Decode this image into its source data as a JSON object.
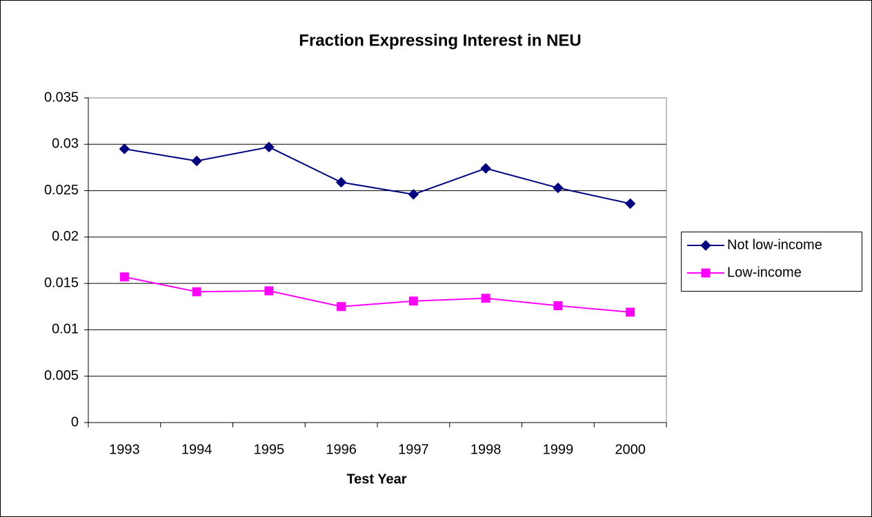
{
  "chart_data": {
    "type": "line",
    "title": "Fraction Expressing Interest in NEU",
    "xlabel": "Test Year",
    "categories": [
      "1993",
      "1994",
      "1995",
      "1996",
      "1997",
      "1998",
      "1999",
      "2000"
    ],
    "series": [
      {
        "name": "Not low-income",
        "color": "#000080",
        "marker": "diamond",
        "values": [
          0.0295,
          0.0282,
          0.0297,
          0.0259,
          0.0246,
          0.0274,
          0.0253,
          0.0236
        ]
      },
      {
        "name": "Low-income",
        "color": "#ff00ff",
        "marker": "square",
        "values": [
          0.0157,
          0.0141,
          0.0142,
          0.0125,
          0.0131,
          0.0134,
          0.0126,
          0.0119
        ]
      }
    ],
    "ylim": [
      0,
      0.035
    ],
    "yticks": [
      0,
      0.005,
      0.01,
      0.015,
      0.02,
      0.025,
      0.03,
      0.035
    ],
    "grid": true,
    "legend": "right"
  }
}
